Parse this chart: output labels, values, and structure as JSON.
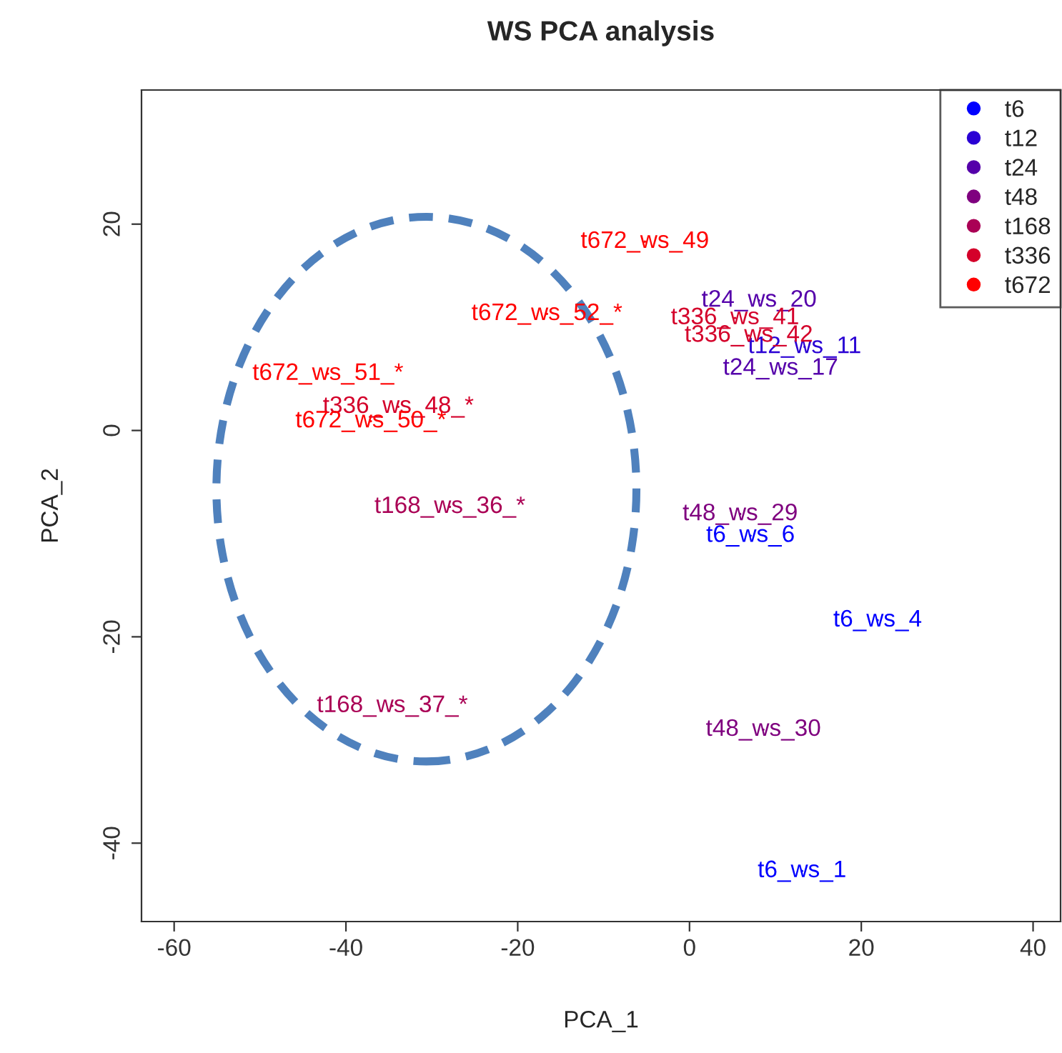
{
  "chart_data": {
    "type": "scatter",
    "title": "WS PCA analysis",
    "xlabel": "PCA_1",
    "ylabel": "PCA_2",
    "xlim": [
      -63.8,
      43.2
    ],
    "ylim": [
      -47.6,
      33.0
    ],
    "xticks": [
      -60,
      -40,
      -20,
      0,
      20,
      40
    ],
    "yticks": [
      -40,
      -20,
      0,
      20
    ],
    "grid": false,
    "legend": "top right",
    "series": [
      {
        "name": "t6",
        "color": "#0000ff",
        "x": [
          7.1,
          21.9,
          13.1
        ],
        "values": [
          -10.2,
          -18.4,
          -42.7
        ],
        "value_labels": [
          "t6_ws_6",
          "t6_ws_4",
          "t6_ws_1"
        ]
      },
      {
        "name": "t12",
        "color": "#2a00d4",
        "x": [
          13.4
        ],
        "values": [
          8.1
        ],
        "value_labels": [
          "t12_ws_11"
        ]
      },
      {
        "name": "t24",
        "color": "#5500aa",
        "x": [
          8.1,
          10.6
        ],
        "values": [
          12.6,
          6.0
        ],
        "value_labels": [
          "t24_ws_20",
          "t24_ws_17"
        ]
      },
      {
        "name": "t48",
        "color": "#7f007f",
        "x": [
          5.9,
          8.6
        ],
        "values": [
          -8.1,
          -29.0
        ],
        "value_labels": [
          "t48_ws_29",
          "t48_ws_30"
        ]
      },
      {
        "name": "t168",
        "color": "#aa0055",
        "x": [
          -27.9,
          -34.6
        ],
        "values": [
          -7.4,
          -26.7
        ],
        "value_labels": [
          "t168_ws_36_*",
          "t168_ws_37_*"
        ]
      },
      {
        "name": "t336",
        "color": "#d4002a",
        "x": [
          -33.9,
          5.3,
          6.9
        ],
        "values": [
          2.3,
          10.9,
          9.2
        ],
        "value_labels": [
          "t336_ws_48_*",
          "t336_ws_41",
          "t336_ws_42"
        ]
      },
      {
        "name": "t672",
        "color": "#ff0000",
        "x": [
          -5.2,
          -16.6,
          -42.1,
          -37.1
        ],
        "values": [
          18.3,
          11.3,
          5.5,
          0.9
        ],
        "value_labels": [
          "t672_ws_49",
          "t672_ws_52_*",
          "t672_ws_51_*",
          "t672_ws_50_*"
        ]
      }
    ]
  }
}
